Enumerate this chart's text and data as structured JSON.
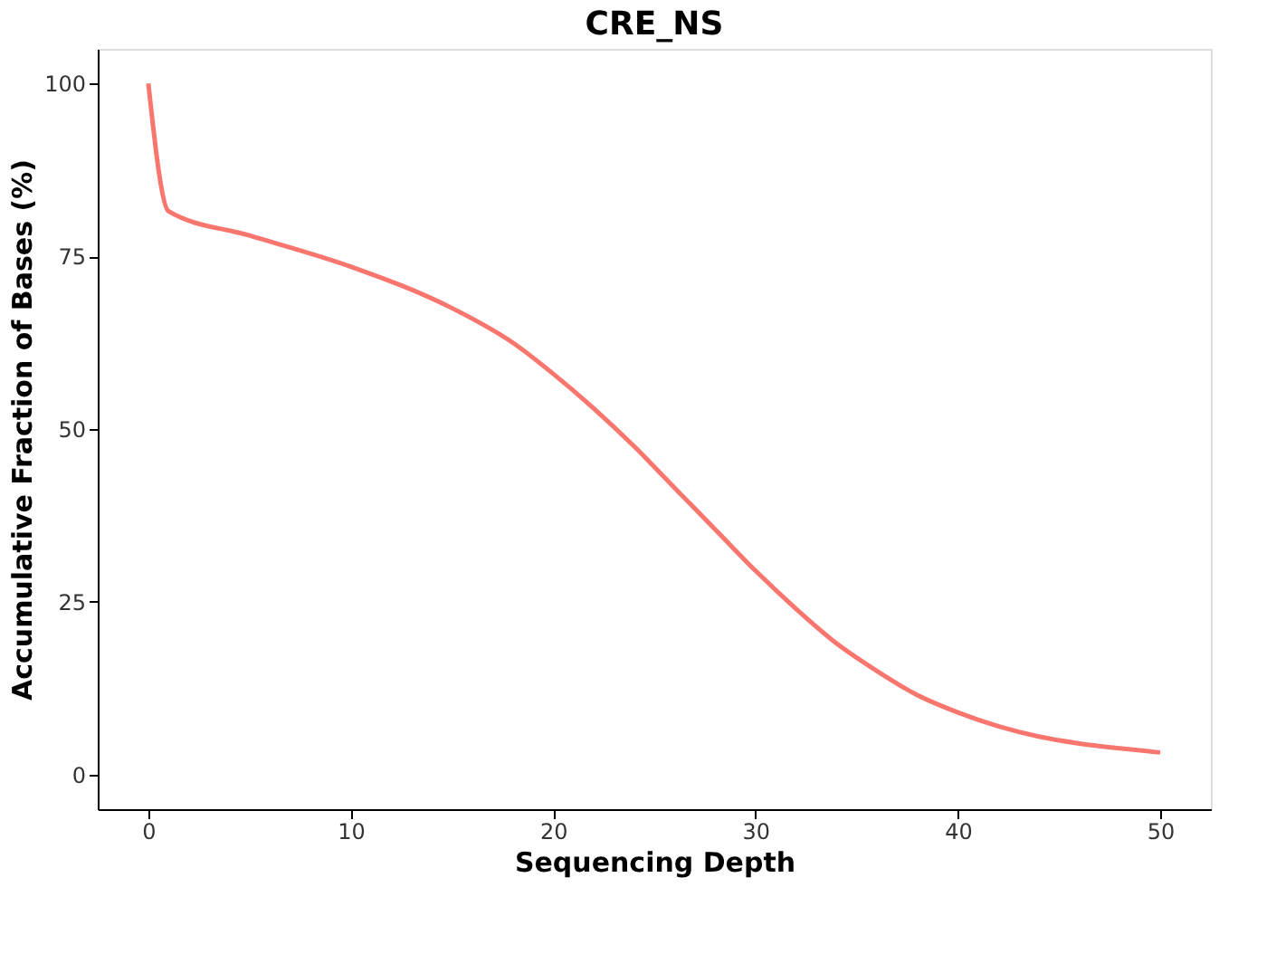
{
  "chart_data": {
    "type": "line",
    "title": "CRE_NS",
    "xlabel": "Sequencing Depth",
    "ylabel": "Accumulative Fraction of Bases (%)",
    "x": [
      0,
      1,
      5,
      10,
      15,
      18,
      20,
      22,
      24,
      26,
      28,
      30,
      32,
      34,
      36,
      38,
      40,
      42,
      44,
      46,
      48,
      50
    ],
    "series": [
      {
        "color": "#f8766d",
        "values": [
          100,
          81.5,
          78,
          73.5,
          67.5,
          62.5,
          58,
          53,
          47.5,
          41.5,
          35.5,
          29.5,
          24,
          19,
          15,
          11.5,
          9,
          7,
          5.5,
          4.5,
          3.8,
          3.2
        ]
      }
    ],
    "xlim": [
      -2.5,
      52.5
    ],
    "ylim": [
      -5,
      105
    ],
    "xticks": [
      0,
      10,
      20,
      30,
      40,
      50
    ],
    "yticks": [
      0,
      25,
      50,
      75,
      100
    ],
    "grid": false,
    "marker": "none",
    "line_style": "solid"
  }
}
